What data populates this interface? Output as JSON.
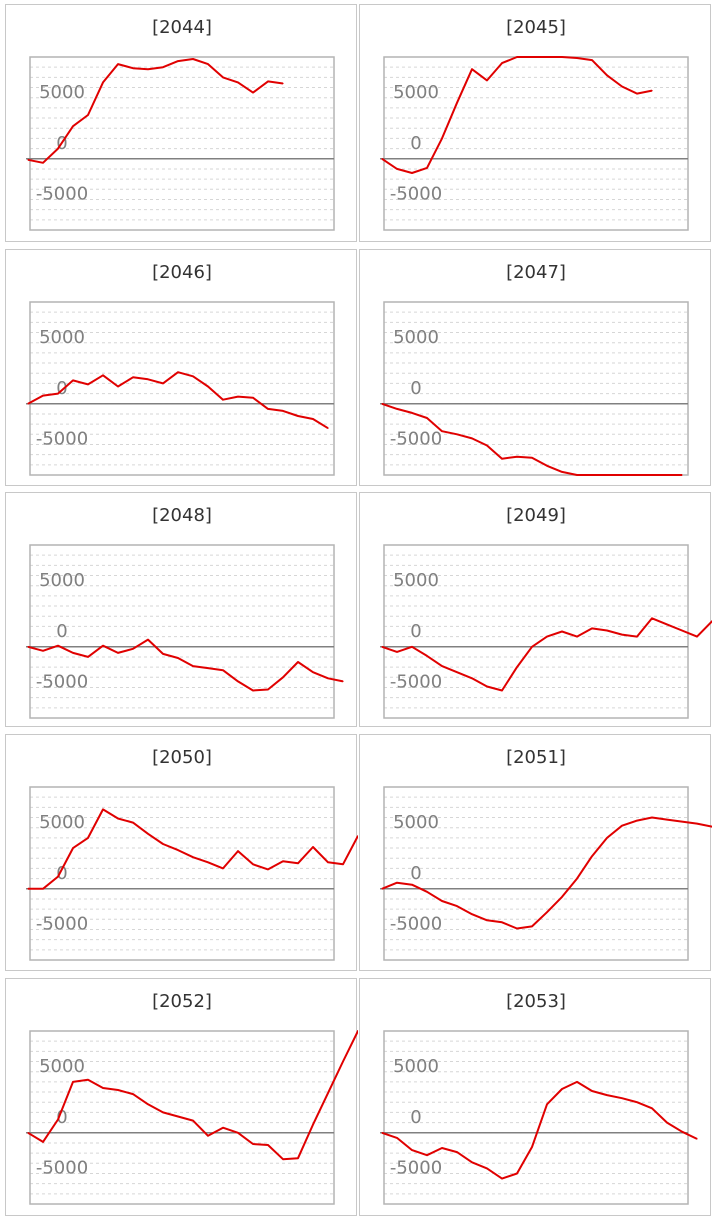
{
  "charts": [
    {
      "title": "[2044]",
      "chart_data": {
        "type": "line",
        "ylim": [
          -7000,
          10000
        ],
        "y_ticks": [
          "5000",
          "0",
          "-5000"
        ],
        "grid": true,
        "series": [
          {
            "color": "#e00000",
            "values": [
              -100,
              -400,
              1000,
              3200,
              4300,
              7500,
              9300,
              8900,
              8800,
              9000,
              9600,
              9800,
              9300,
              8000,
              7500,
              6500,
              7600,
              7400
            ]
          }
        ]
      }
    },
    {
      "title": "[2045]",
      "chart_data": {
        "type": "line",
        "ylim": [
          -7000,
          10000
        ],
        "y_ticks": [
          "5000",
          "0",
          "-5000"
        ],
        "grid": true,
        "series": [
          {
            "color": "#e00000",
            "values": [
              0,
              -1000,
              -1400,
              -900,
              2000,
              5500,
              8800,
              7700,
              9400,
              10000,
              10000,
              10000,
              10000,
              9900,
              9700,
              8200,
              7100,
              6400,
              6700
            ]
          }
        ]
      }
    },
    {
      "title": "[2046]",
      "chart_data": {
        "type": "line",
        "ylim": [
          -7000,
          10000
        ],
        "y_ticks": [
          "5000",
          "0",
          "-5000"
        ],
        "grid": true,
        "series": [
          {
            "color": "#e00000",
            "values": [
              0,
              800,
              1000,
              2300,
              1900,
              2800,
              1700,
              2600,
              2400,
              2000,
              3100,
              2700,
              1700,
              400,
              700,
              600,
              -500,
              -700,
              -1200,
              -1500,
              -2400
            ]
          }
        ]
      }
    },
    {
      "title": "[2047]",
      "chart_data": {
        "type": "line",
        "ylim": [
          -7000,
          10000
        ],
        "y_ticks": [
          "5000",
          "0",
          "-5000"
        ],
        "grid": true,
        "series": [
          {
            "color": "#e00000",
            "values": [
              0,
              -500,
              -900,
              -1400,
              -2700,
              -3000,
              -3400,
              -4100,
              -5400,
              -5200,
              -5300,
              -6100,
              -6700,
              -7000,
              -7000,
              -7000,
              -7000,
              -7000,
              -7000,
              -7000,
              -7000
            ]
          }
        ]
      }
    },
    {
      "title": "[2048]",
      "chart_data": {
        "type": "line",
        "ylim": [
          -7000,
          10000
        ],
        "y_ticks": [
          "5000",
          "0",
          "-5000"
        ],
        "grid": true,
        "series": [
          {
            "color": "#e00000",
            "values": [
              0,
              -400,
              100,
              -600,
              -1000,
              100,
              -600,
              -200,
              700,
              -700,
              -1100,
              -1900,
              -2100,
              -2300,
              -3400,
              -4300,
              -4200,
              -3000,
              -1500,
              -2500,
              -3100,
              -3400
            ]
          }
        ]
      }
    },
    {
      "title": "[2049]",
      "chart_data": {
        "type": "line",
        "ylim": [
          -7000,
          10000
        ],
        "y_ticks": [
          "5000",
          "0",
          "-5000"
        ],
        "grid": true,
        "series": [
          {
            "color": "#e00000",
            "values": [
              0,
              -500,
              0,
              -900,
              -1900,
              -2500,
              -3100,
              -3900,
              -4300,
              -2000,
              0,
              1000,
              1500,
              1000,
              1800,
              1600,
              1200,
              1000,
              2800,
              2200,
              1600,
              1000,
              2500,
              3500
            ]
          }
        ]
      }
    },
    {
      "title": "[2050]",
      "chart_data": {
        "type": "line",
        "ylim": [
          -7000,
          10000
        ],
        "y_ticks": [
          "5000",
          "0",
          "-5000"
        ],
        "grid": true,
        "series": [
          {
            "color": "#e00000",
            "values": [
              0,
              0,
              1200,
              4000,
              5000,
              7800,
              6900,
              6500,
              5400,
              4400,
              3800,
              3100,
              2600,
              2000,
              3700,
              2400,
              1900,
              2700,
              2500,
              4100,
              2600,
              2400,
              5200
            ]
          }
        ]
      }
    },
    {
      "title": "[2051]",
      "chart_data": {
        "type": "line",
        "ylim": [
          -7000,
          10000
        ],
        "y_ticks": [
          "5000",
          "0",
          "-5000"
        ],
        "grid": true,
        "series": [
          {
            "color": "#e00000",
            "values": [
              0,
              600,
              400,
              -300,
              -1200,
              -1700,
              -2500,
              -3100,
              -3300,
              -3900,
              -3700,
              -2300,
              -800,
              1000,
              3200,
              5000,
              6200,
              6700,
              7000,
              6800,
              6600,
              6400,
              6100,
              5600,
              6500
            ]
          }
        ]
      }
    },
    {
      "title": "[2052]",
      "chart_data": {
        "type": "line",
        "ylim": [
          -7000,
          10000
        ],
        "y_ticks": [
          "5000",
          "0",
          "-5000"
        ],
        "grid": true,
        "series": [
          {
            "color": "#e00000",
            "values": [
              0,
              -900,
              1300,
              5000,
              5200,
              4400,
              4200,
              3800,
              2800,
              2000,
              1600,
              1200,
              -300,
              500,
              0,
              -1100,
              -1200,
              -2600,
              -2500,
              800,
              3900,
              7000,
              10000,
              10000
            ]
          }
        ]
      }
    },
    {
      "title": "[2053]",
      "chart_data": {
        "type": "line",
        "ylim": [
          -7000,
          10000
        ],
        "y_ticks": [
          "5000",
          "0",
          "-5000"
        ],
        "grid": true,
        "series": [
          {
            "color": "#e00000",
            "values": [
              0,
              -500,
              -1700,
              -2200,
              -1500,
              -1900,
              -2900,
              -3500,
              -4500,
              -4000,
              -1400,
              2800,
              4300,
              5000,
              4100,
              3700,
              3400,
              3000,
              2400,
              1000,
              100,
              -600
            ]
          }
        ]
      }
    }
  ]
}
